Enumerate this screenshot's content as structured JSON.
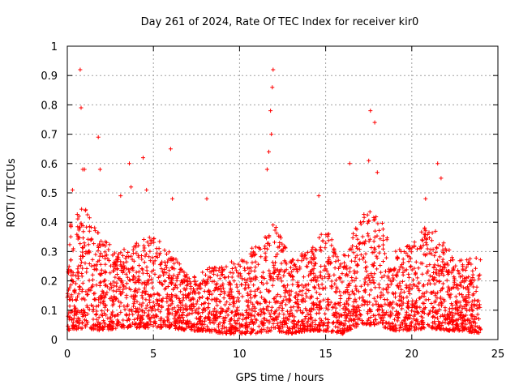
{
  "chart_data": {
    "type": "scatter",
    "title": "Day 261 of 2024, Rate Of TEC Index for receiver kir0",
    "xlabel": "GPS time / hours",
    "ylabel": "ROTI / TECUs",
    "xlim": [
      0,
      25
    ],
    "ylim": [
      0,
      1
    ],
    "x_ticks": [
      "0",
      "5",
      "10",
      "15",
      "20",
      "25"
    ],
    "y_ticks": [
      "0",
      "0.1",
      "0.2",
      "0.3",
      "0.4",
      "0.5",
      "0.6",
      "0.7",
      "0.8",
      "0.9",
      "1"
    ],
    "grid": true,
    "marker": "+",
    "color": "#ff0000",
    "series": [
      {
        "outliers": [
          [
            0.75,
            0.92
          ],
          [
            0.8,
            0.79
          ],
          [
            1.8,
            0.69
          ],
          [
            6.0,
            0.65
          ],
          [
            4.4,
            0.62
          ],
          [
            3.6,
            0.6
          ],
          [
            11.95,
            0.92
          ],
          [
            11.9,
            0.86
          ],
          [
            11.8,
            0.78
          ],
          [
            11.85,
            0.7
          ],
          [
            11.7,
            0.64
          ],
          [
            17.6,
            0.78
          ],
          [
            17.85,
            0.74
          ],
          [
            21.5,
            0.6
          ],
          [
            17.5,
            0.61
          ],
          [
            16.4,
            0.6
          ],
          [
            0.9,
            0.58
          ],
          [
            1.0,
            0.58
          ],
          [
            1.9,
            0.58
          ],
          [
            11.6,
            0.58
          ],
          [
            18.0,
            0.57
          ],
          [
            21.7,
            0.55
          ],
          [
            3.7,
            0.52
          ],
          [
            4.6,
            0.51
          ],
          [
            0.3,
            0.51
          ],
          [
            8.1,
            0.48
          ],
          [
            6.1,
            0.48
          ],
          [
            14.6,
            0.49
          ],
          [
            20.8,
            0.48
          ],
          [
            3.1,
            0.49
          ]
        ],
        "profile_hours": [
          0,
          1,
          2,
          3,
          4,
          5,
          6,
          7,
          8,
          9,
          10,
          11,
          12,
          13,
          14,
          15,
          16,
          17,
          18,
          19,
          20,
          21,
          22,
          23,
          24
        ],
        "profile_upper": [
          0.42,
          0.45,
          0.36,
          0.3,
          0.33,
          0.36,
          0.3,
          0.22,
          0.24,
          0.26,
          0.27,
          0.33,
          0.4,
          0.27,
          0.31,
          0.38,
          0.28,
          0.43,
          0.44,
          0.3,
          0.33,
          0.4,
          0.32,
          0.27,
          0.3
        ],
        "profile_lower": [
          0.03,
          0.04,
          0.03,
          0.04,
          0.04,
          0.04,
          0.04,
          0.03,
          0.03,
          0.02,
          0.02,
          0.02,
          0.03,
          0.02,
          0.03,
          0.03,
          0.02,
          0.05,
          0.05,
          0.03,
          0.03,
          0.04,
          0.03,
          0.03,
          0.02
        ]
      }
    ]
  }
}
